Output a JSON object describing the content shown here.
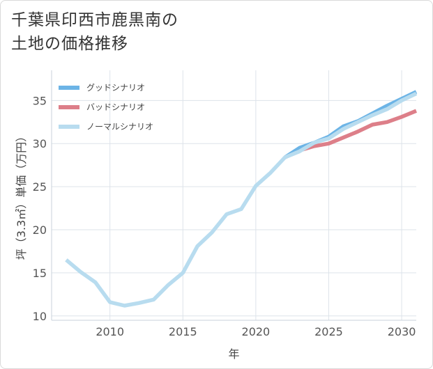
{
  "title": {
    "line1": "千葉県印西市鹿黒南の",
    "line2": "土地の価格推移"
  },
  "chart_data": {
    "type": "line",
    "title": "千葉県印西市鹿黒南の土地の価格推移",
    "xlabel": "年",
    "ylabel": "坪（3.3㎡）単価（万円）",
    "xlim": [
      2006,
      2031
    ],
    "ylim": [
      9.5,
      38.5
    ],
    "xticks": [
      2010,
      2015,
      2020,
      2025,
      2030
    ],
    "yticks": [
      10,
      15,
      20,
      25,
      30,
      35
    ],
    "grid": true,
    "legend_position": "top-left",
    "series": [
      {
        "name": "グッドシナリオ",
        "color": "#6cb4e6",
        "x": [
          2022,
          2023,
          2024,
          2025,
          2026,
          2027,
          2028,
          2029,
          2030,
          2031
        ],
        "values": [
          28.4,
          29.5,
          30.1,
          30.8,
          32.0,
          32.6,
          33.5,
          34.4,
          35.2,
          36.0
        ]
      },
      {
        "name": "バッドシナリオ",
        "color": "#dd7f89",
        "x": [
          2022,
          2023,
          2024,
          2025,
          2026,
          2027,
          2028,
          2029,
          2030,
          2031
        ],
        "values": [
          28.4,
          29.2,
          29.7,
          30.0,
          30.7,
          31.4,
          32.2,
          32.5,
          33.1,
          33.8
        ]
      },
      {
        "name": "ノーマルシナリオ",
        "color": "#b8dcef",
        "x": [
          2007,
          2008,
          2009,
          2010,
          2011,
          2012,
          2013,
          2014,
          2015,
          2016,
          2017,
          2018,
          2019,
          2020,
          2021,
          2022,
          2023,
          2024,
          2025,
          2026,
          2027,
          2028,
          2029,
          2030,
          2031
        ],
        "values": [
          16.5,
          15.1,
          13.9,
          11.6,
          11.2,
          11.5,
          11.9,
          13.6,
          15.0,
          18.1,
          19.7,
          21.8,
          22.4,
          25.1,
          26.6,
          28.4,
          29.1,
          30.1,
          30.6,
          31.7,
          32.5,
          33.3,
          34.0,
          35.0,
          35.8
        ]
      }
    ]
  }
}
